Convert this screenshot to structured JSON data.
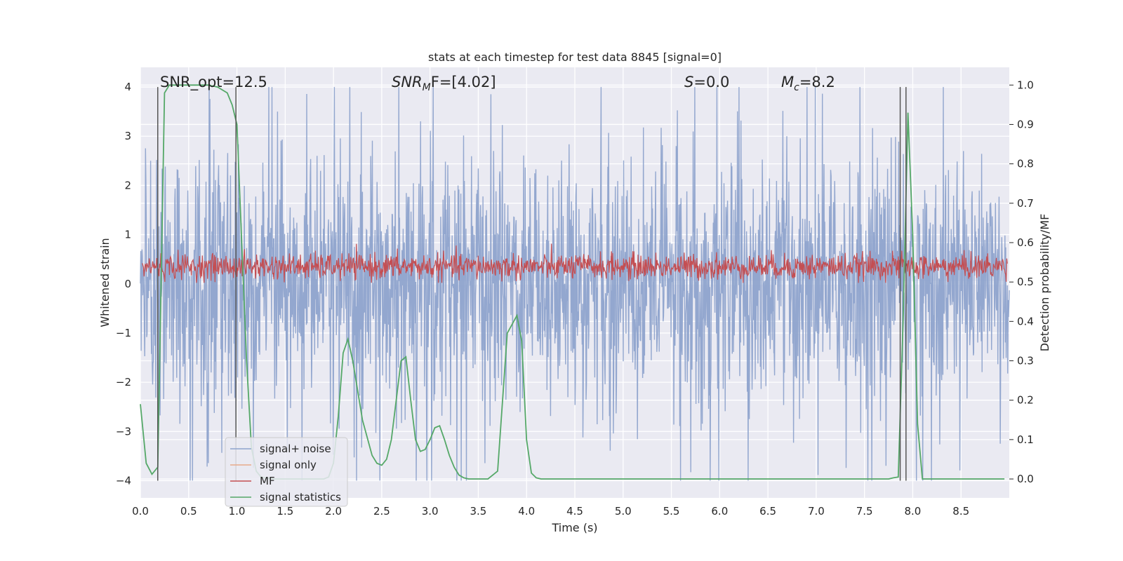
{
  "chart_data": {
    "type": "line",
    "title": "stats at each timestep for test data 8845 [signal=0]",
    "xlabel": "Time (s)",
    "ylabel": "Whitened strain",
    "ylabel_right": "Detection probability/MF",
    "xlim": [
      0.0,
      9.0
    ],
    "ylim": [
      -4.35,
      4.4
    ],
    "ylim_right": [
      -0.048,
      1.045
    ],
    "xticks": [
      "0.0",
      "0.5",
      "1.0",
      "1.5",
      "2.0",
      "2.5",
      "3.0",
      "3.5",
      "4.0",
      "4.5",
      "5.0",
      "5.5",
      "6.0",
      "6.5",
      "7.0",
      "7.5",
      "8.0",
      "8.5"
    ],
    "yticks": [
      "4",
      "3",
      "2",
      "1",
      "0",
      "−1",
      "−2",
      "−3",
      "−4"
    ],
    "yticks_right": [
      "1.0",
      "0.9",
      "0.8",
      "0.7",
      "0.6",
      "0.5",
      "0.4",
      "0.3",
      "0.2",
      "0.1",
      "0.0"
    ],
    "annotations": {
      "snr_opt": "SNR_opt=12.5",
      "snr_mf_prefix": "SNR",
      "snr_mf_sub": "M",
      "snr_mf_suffix": "F=[4.02]",
      "s_sym": "S",
      "s_val": "=0.0",
      "mc_sym": "M",
      "mc_sub": "c",
      "mc_val": "=8.2"
    },
    "series": [
      {
        "name": "signal+ noise",
        "color": "#8ea3cc",
        "axis": "left",
        "note": "white noise, amplitude approx ±4"
      },
      {
        "name": "signal only",
        "color": "#e8a98a",
        "axis": "left",
        "values": []
      },
      {
        "name": "MF",
        "color": "#c44e52",
        "axis": "left",
        "note": "noise band approx 0 to 0.8"
      },
      {
        "name": "signal statistics",
        "color": "#55a868",
        "axis": "right",
        "x": [
          0.0,
          0.06,
          0.12,
          0.18,
          0.25,
          0.3,
          0.4,
          0.5,
          0.6,
          0.7,
          0.8,
          0.9,
          0.95,
          1.0,
          1.05,
          1.1,
          1.15,
          1.2,
          1.25,
          1.3,
          1.4,
          1.6,
          1.8,
          1.9,
          1.95,
          2.0,
          2.05,
          2.1,
          2.15,
          2.2,
          2.3,
          2.4,
          2.45,
          2.5,
          2.55,
          2.6,
          2.65,
          2.7,
          2.75,
          2.8,
          2.85,
          2.9,
          2.95,
          3.0,
          3.05,
          3.1,
          3.15,
          3.2,
          3.25,
          3.3,
          3.35,
          3.4,
          3.45,
          3.5,
          3.55,
          3.6,
          3.7,
          3.8,
          3.9,
          3.95,
          4.0,
          4.05,
          4.1,
          4.15,
          4.2,
          4.25,
          4.3,
          4.5,
          5.0,
          5.5,
          6.0,
          6.5,
          7.0,
          7.5,
          7.7,
          7.75,
          7.8,
          7.85,
          7.9,
          7.95,
          8.0,
          8.05,
          8.1,
          8.2,
          8.5,
          8.8,
          8.95
        ],
        "values": [
          0.19,
          0.04,
          0.012,
          0.03,
          0.98,
          1.0,
          1.0,
          1.0,
          1.0,
          1.0,
          0.995,
          0.98,
          0.95,
          0.9,
          0.6,
          0.3,
          0.08,
          0.02,
          0.005,
          0.002,
          0.0,
          0.0,
          0.0,
          0.0,
          0.005,
          0.04,
          0.16,
          0.32,
          0.355,
          0.3,
          0.15,
          0.06,
          0.04,
          0.035,
          0.05,
          0.1,
          0.2,
          0.3,
          0.31,
          0.2,
          0.1,
          0.07,
          0.075,
          0.1,
          0.13,
          0.135,
          0.1,
          0.06,
          0.03,
          0.01,
          0.003,
          0.0,
          0.0,
          0.0,
          0.0,
          0.0,
          0.02,
          0.37,
          0.415,
          0.35,
          0.1,
          0.015,
          0.003,
          0.0,
          0.0,
          0.0,
          0.0,
          0.0,
          0.0,
          0.0,
          0.0,
          0.0,
          0.0,
          0.0,
          0.0,
          0.0,
          0.003,
          0.005,
          0.4,
          0.93,
          0.62,
          0.14,
          0.0,
          0.0,
          0.0,
          0.0,
          0.0
        ]
      }
    ],
    "vlines_x": [
      0.18,
      0.99,
      7.87,
      7.93
    ],
    "legend": [
      "signal+ noise",
      "signal only",
      "MF",
      "signal statistics"
    ],
    "legend_location": "lower-left",
    "grid": true
  }
}
